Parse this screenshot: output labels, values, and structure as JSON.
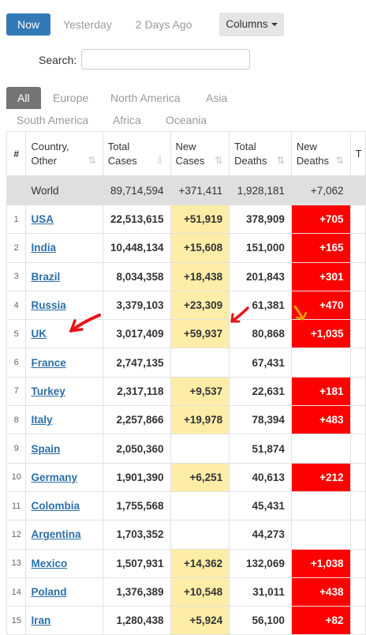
{
  "day_tabs": [
    {
      "label": "Now",
      "active": true
    },
    {
      "label": "Yesterday",
      "active": false
    },
    {
      "label": "2 Days Ago",
      "active": false
    }
  ],
  "columns_button": "Columns",
  "search": {
    "label": "Search:",
    "value": "",
    "placeholder": ""
  },
  "region_tabs": [
    {
      "label": "All",
      "active": true
    },
    {
      "label": "Europe"
    },
    {
      "label": "North America"
    },
    {
      "label": "Asia"
    },
    {
      "label": "South America"
    },
    {
      "label": "Africa"
    },
    {
      "label": "Oceania"
    }
  ],
  "table": {
    "headers": [
      "#",
      "Country,\nOther",
      "Total\nCases",
      "New\nCases",
      "Total\nDeaths",
      "New\nDeaths"
    ],
    "world": {
      "country": "World",
      "total_cases": "89,714,594",
      "new_cases": "+371,411",
      "total_deaths": "1,928,181",
      "new_deaths": "+7,062"
    },
    "rows": [
      {
        "rank": "1",
        "country": "USA",
        "total_cases": "22,513,615",
        "new_cases": "+51,919",
        "total_deaths": "378,909",
        "new_deaths": "+705"
      },
      {
        "rank": "2",
        "country": "India",
        "total_cases": "10,448,134",
        "new_cases": "+15,608",
        "total_deaths": "151,000",
        "new_deaths": "+165"
      },
      {
        "rank": "3",
        "country": "Brazil",
        "total_cases": "8,034,358",
        "new_cases": "+18,438",
        "total_deaths": "201,843",
        "new_deaths": "+301"
      },
      {
        "rank": "4",
        "country": "Russia",
        "total_cases": "3,379,103",
        "new_cases": "+23,309",
        "total_deaths": "61,381",
        "new_deaths": "+470"
      },
      {
        "rank": "5",
        "country": "UK",
        "total_cases": "3,017,409",
        "new_cases": "+59,937",
        "total_deaths": "80,868",
        "new_deaths": "+1,035"
      },
      {
        "rank": "6",
        "country": "France",
        "total_cases": "2,747,135",
        "new_cases": "",
        "total_deaths": "67,431",
        "new_deaths": ""
      },
      {
        "rank": "7",
        "country": "Turkey",
        "total_cases": "2,317,118",
        "new_cases": "+9,537",
        "total_deaths": "22,631",
        "new_deaths": "+181"
      },
      {
        "rank": "8",
        "country": "Italy",
        "total_cases": "2,257,866",
        "new_cases": "+19,978",
        "total_deaths": "78,394",
        "new_deaths": "+483"
      },
      {
        "rank": "9",
        "country": "Spain",
        "total_cases": "2,050,360",
        "new_cases": "",
        "total_deaths": "51,874",
        "new_deaths": ""
      },
      {
        "rank": "10",
        "country": "Germany",
        "total_cases": "1,901,390",
        "new_cases": "+6,251",
        "total_deaths": "40,613",
        "new_deaths": "+212"
      },
      {
        "rank": "11",
        "country": "Colombia",
        "total_cases": "1,755,568",
        "new_cases": "",
        "total_deaths": "45,431",
        "new_deaths": ""
      },
      {
        "rank": "12",
        "country": "Argentina",
        "total_cases": "1,703,352",
        "new_cases": "",
        "total_deaths": "44,273",
        "new_deaths": ""
      },
      {
        "rank": "13",
        "country": "Mexico",
        "total_cases": "1,507,931",
        "new_cases": "+14,362",
        "total_deaths": "132,069",
        "new_deaths": "+1,038"
      },
      {
        "rank": "14",
        "country": "Poland",
        "total_cases": "1,376,389",
        "new_cases": "+10,548",
        "total_deaths": "31,011",
        "new_deaths": "+438"
      },
      {
        "rank": "15",
        "country": "Iran",
        "total_cases": "1,280,438",
        "new_cases": "+5,924",
        "total_deaths": "56,100",
        "new_deaths": "+82"
      }
    ]
  },
  "colors": {
    "accent": "#3379b7",
    "new_cases_bg": "#fdeda7",
    "new_deaths_bg": "#fe0000",
    "world_bg": "#dfdfdf",
    "annotation": "#e8141a"
  }
}
